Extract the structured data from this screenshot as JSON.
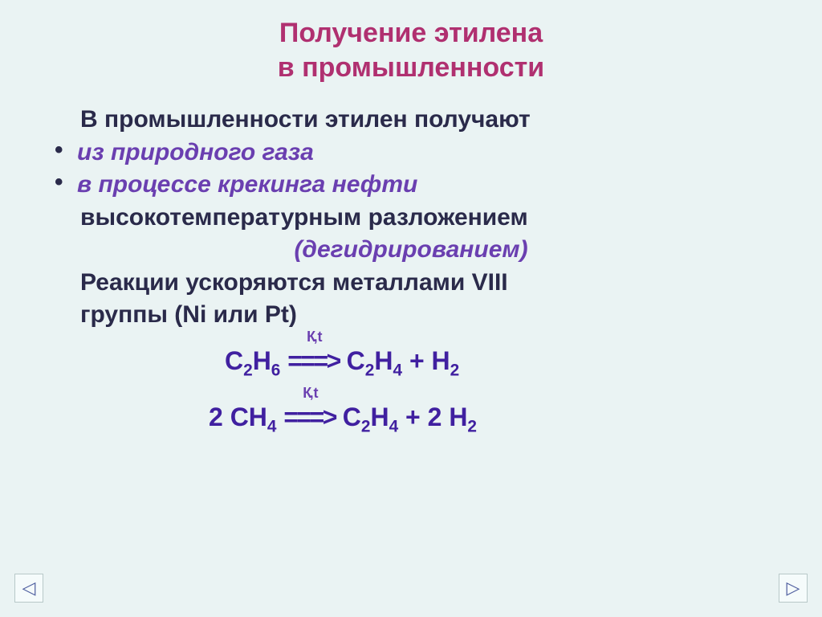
{
  "title_line1": "Получение этилена",
  "title_line2": "в промышленности",
  "intro": "В промышленности  этилен  получают",
  "bullet1": "из природного газа",
  "bullet2": "в процессе крекинга нефти",
  "line_dark1": "высокотемпературным   разложением",
  "line_italic": "(дегидрированием)",
  "line_dark2a": "Реакции ускоряются  металлами VIII",
  "line_dark2b": "группы (Ni  или  Pt)",
  "arrow_caption": "К, t",
  "nav_left_glyph": "◁",
  "nav_right_glyph": "▷",
  "formula1": {
    "parts": [
      "C",
      "2",
      "H",
      "6",
      "   ",
      "===>",
      "   C",
      "2",
      "H",
      "4",
      "  +   H",
      "2"
    ]
  },
  "formula2": {
    "parts": [
      "2 CH",
      "4",
      "   ",
      "===>",
      "   C",
      "2",
      "H",
      "4",
      "  +  2 H",
      "2"
    ]
  },
  "colors": {
    "background": "#eaf3f3",
    "title": "#b03070",
    "dark_text": "#2a2a4a",
    "italic_purple": "#6a3fb0",
    "formula": "#4020a0",
    "nav_border": "#b8c8c8",
    "nav_glyph": "#5060a0"
  },
  "fonts": {
    "title_size": 34,
    "body_size": 30,
    "formula_size": 32,
    "arrow_cap_size": 18
  }
}
